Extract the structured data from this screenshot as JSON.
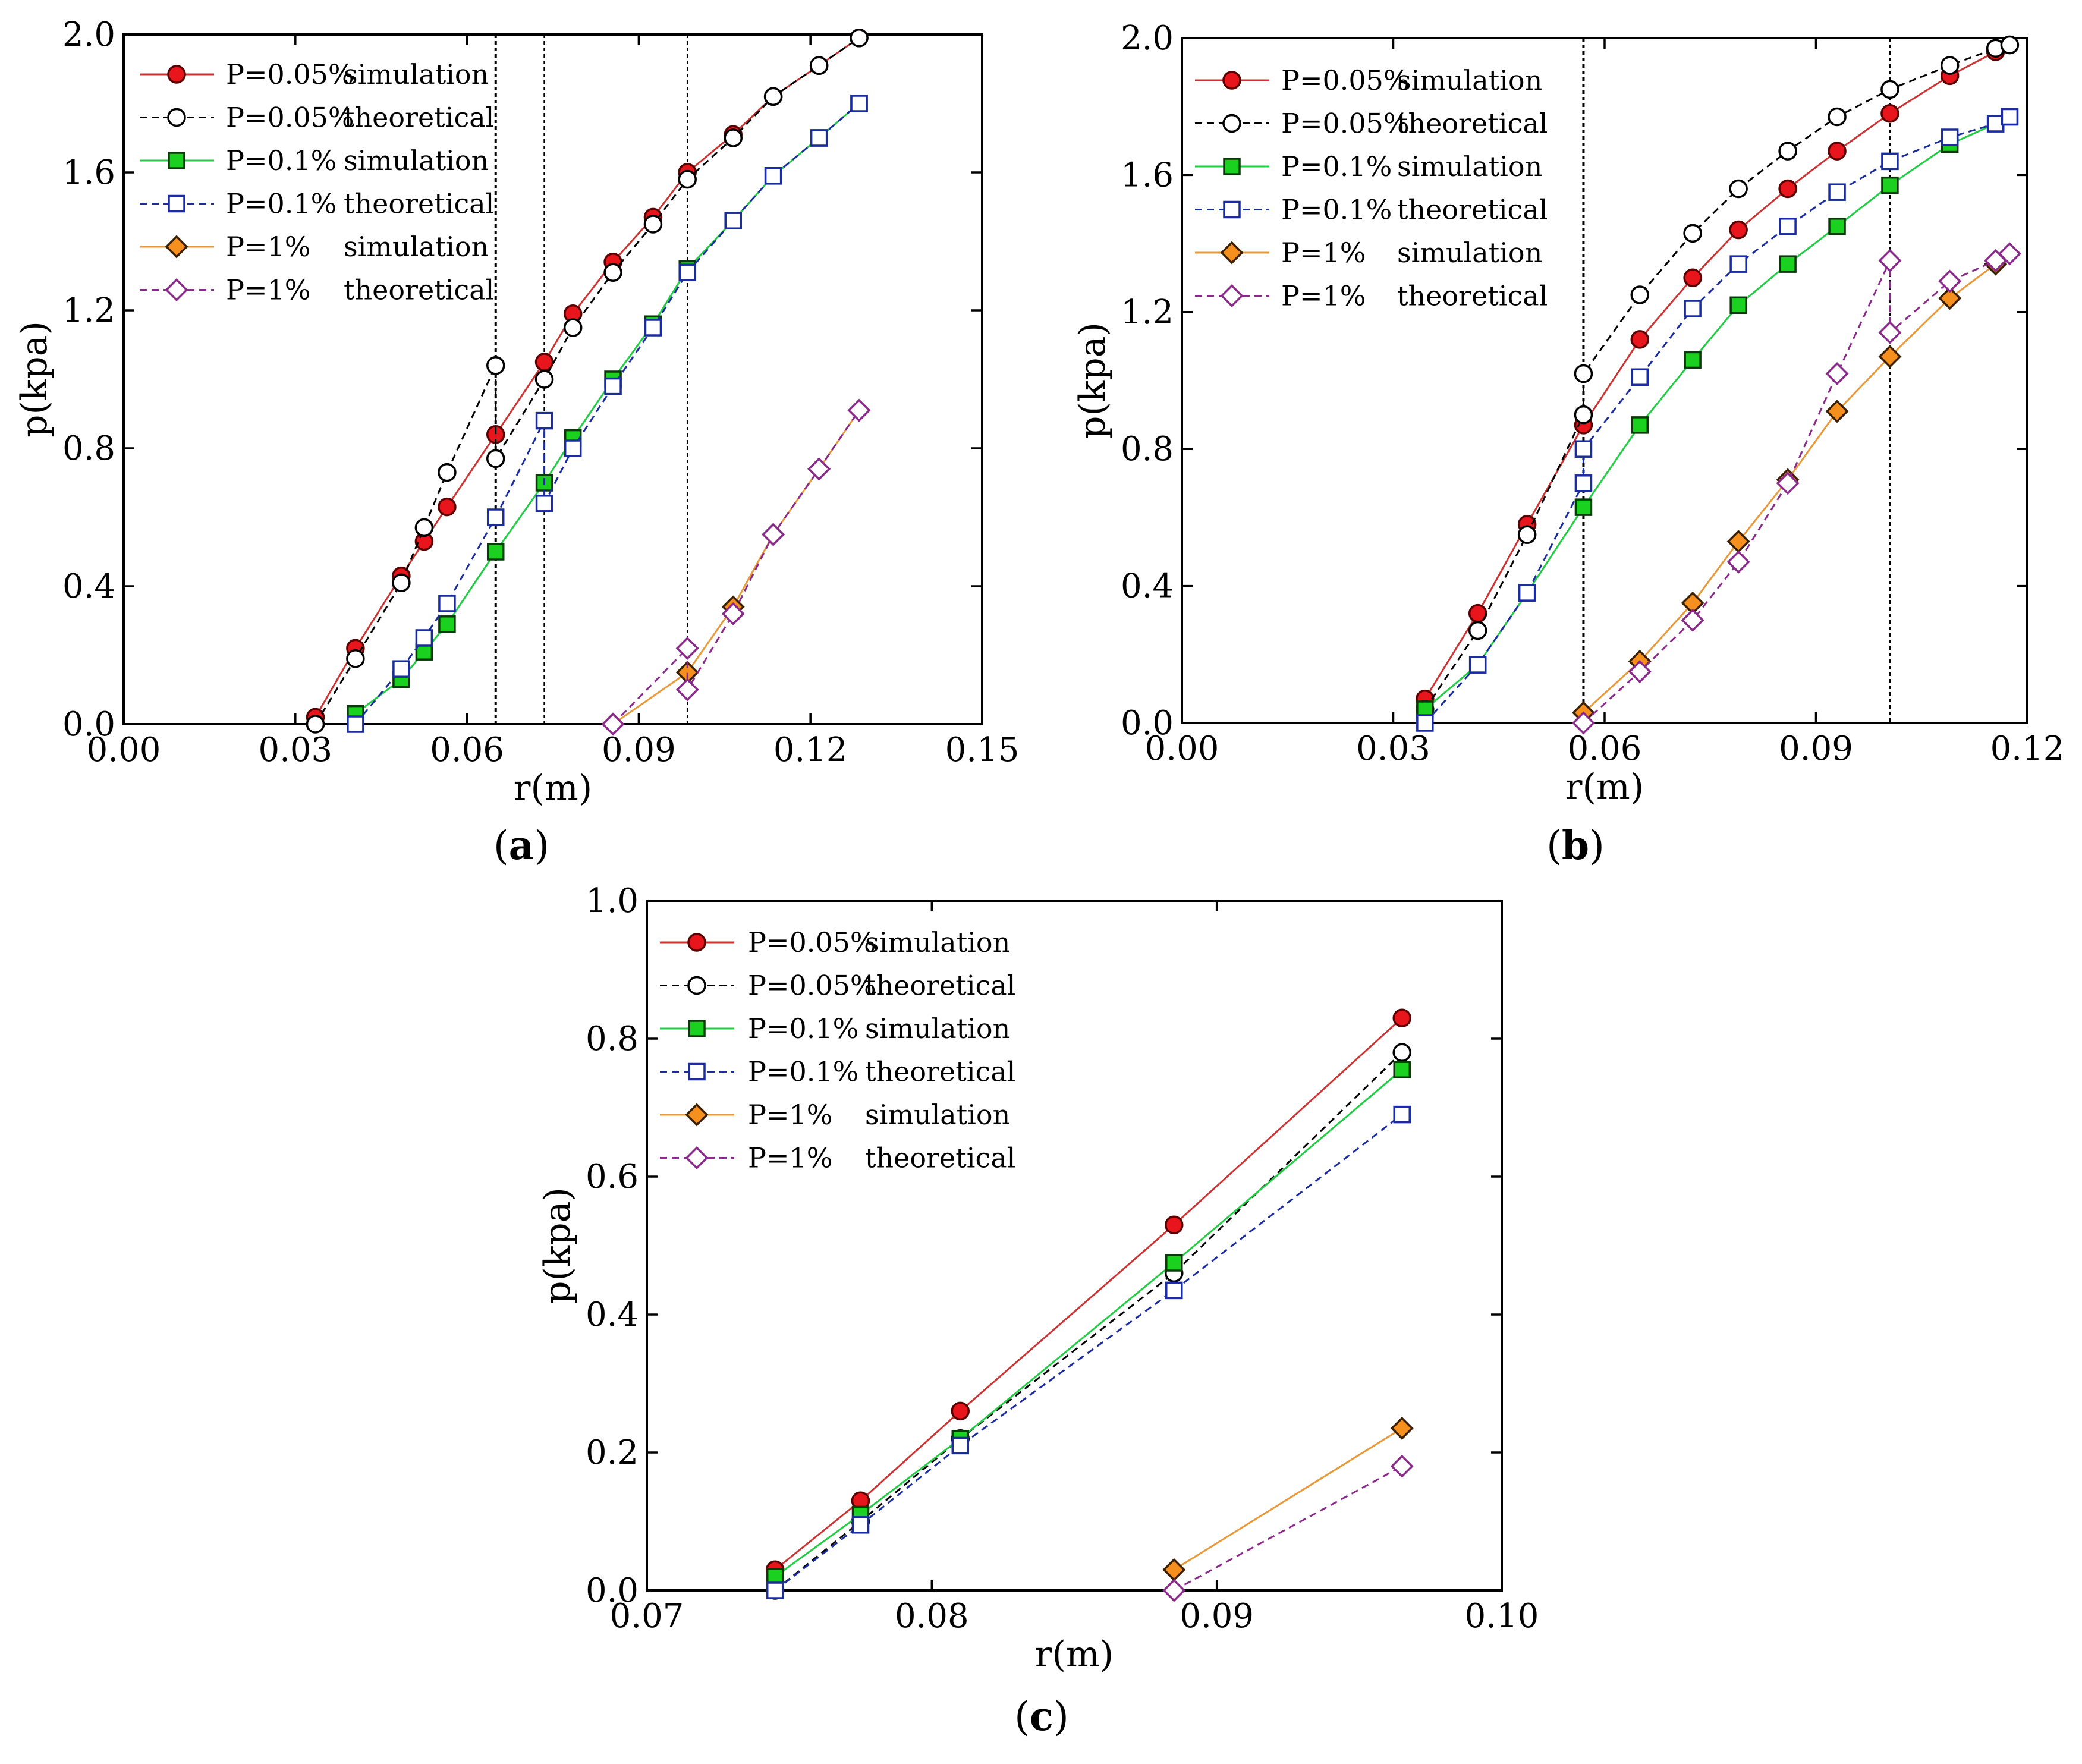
{
  "figure": {
    "panel_labels": [
      "(a)",
      "(b)",
      "(c)"
    ]
  },
  "colors": {
    "sim_005_line": "#cc3333",
    "sim_005_fill": "#e8161c",
    "theo_005": "#000000",
    "sim_01_line": "#22cc44",
    "sim_01_fill": "#19d11e",
    "theo_01": "#1a2c9e",
    "sim_1_line": "#e89a3a",
    "sim_1_fill": "#f5901e",
    "theo_1": "#8a2a8a"
  },
  "chart_data": [
    {
      "type": "line",
      "panel": "(a)",
      "panel_letter": "a",
      "xlabel": "r(m)",
      "ylabel": "p(kpa)",
      "xlim": [
        0,
        0.15
      ],
      "ylim": [
        0,
        2.0
      ],
      "xticks": [
        "0.00",
        "0.03",
        "0.06",
        "0.09",
        "0.12",
        "0.15"
      ],
      "xtick_values": [
        0,
        0.03,
        0.06,
        0.09,
        0.12,
        0.15
      ],
      "yticks": [
        "0.0",
        "0.4",
        "0.8",
        "1.2",
        "1.6",
        "2.0"
      ],
      "ytick_values": [
        0,
        0.4,
        0.8,
        1.2,
        1.6,
        2.0
      ],
      "vlines": [
        0.065,
        0.0735,
        0.0985
      ],
      "legend_position": "top-left",
      "series": [
        {
          "name": "P=0.05% simulation",
          "legend_a": "P=0.05%",
          "legend_b": "simulation",
          "style": "sim",
          "marker": "circle",
          "line_color": "#cc3333",
          "fill": "#e8161c",
          "x": [
            0.0335,
            0.0405,
            0.0485,
            0.0525,
            0.0565,
            0.065,
            0.0735,
            0.0785,
            0.0855,
            0.0925,
            0.0985,
            0.1065,
            0.1135,
            0.1215,
            0.1285
          ],
          "y": [
            0.02,
            0.22,
            0.43,
            0.53,
            0.63,
            0.84,
            1.05,
            1.19,
            1.34,
            1.47,
            1.6,
            1.71,
            1.82,
            1.91,
            1.99
          ]
        },
        {
          "name": "P=0.05% theoretical",
          "legend_a": "P=0.05%",
          "legend_b": "theoretical",
          "style": "theo",
          "marker": "circle",
          "line_color": "#000000",
          "fill": "#ffffff",
          "x": [
            0.0335,
            0.0405,
            0.0485,
            0.0525,
            0.0565,
            0.065,
            0.065,
            0.0735,
            0.0785,
            0.0855,
            0.0925,
            0.0985,
            0.1065,
            0.1135,
            0.1215,
            0.1285
          ],
          "y": [
            0.0,
            0.19,
            0.41,
            0.57,
            0.73,
            1.04,
            0.77,
            1.0,
            1.15,
            1.31,
            1.45,
            1.58,
            1.7,
            1.82,
            1.91,
            1.99
          ]
        },
        {
          "name": "P=0.1% simulation",
          "legend_a": "P=0.1%",
          "legend_b": "simulation",
          "style": "sim",
          "marker": "square",
          "line_color": "#22cc44",
          "fill": "#19d11e",
          "x": [
            0.0405,
            0.0485,
            0.0525,
            0.0565,
            0.065,
            0.0735,
            0.0785,
            0.0855,
            0.0925,
            0.0985,
            0.1065,
            0.1135,
            0.1215,
            0.1285
          ],
          "y": [
            0.03,
            0.13,
            0.21,
            0.29,
            0.5,
            0.7,
            0.83,
            1.0,
            1.16,
            1.32,
            1.46,
            1.59,
            1.7,
            1.8
          ]
        },
        {
          "name": "P=0.1% theoretical",
          "legend_a": "P=0.1%",
          "legend_b": "theoretical",
          "style": "theo",
          "marker": "square",
          "line_color": "#1a2c9e",
          "fill": "#ffffff",
          "x": [
            0.0405,
            0.0485,
            0.0525,
            0.0565,
            0.065,
            0.0735,
            0.0735,
            0.0785,
            0.0855,
            0.0925,
            0.0985,
            0.1065,
            0.1135,
            0.1215,
            0.1285
          ],
          "y": [
            0.0,
            0.16,
            0.25,
            0.35,
            0.6,
            0.88,
            0.64,
            0.8,
            0.98,
            1.15,
            1.31,
            1.46,
            1.59,
            1.7,
            1.8
          ]
        },
        {
          "name": "P=1% simulation",
          "legend_a": "P=1%",
          "legend_b": "simulation",
          "style": "sim",
          "marker": "diamond",
          "line_color": "#e89a3a",
          "fill": "#f5901e",
          "x": [
            0.0855,
            0.0985,
            0.1065,
            0.1135,
            0.1215,
            0.1285
          ],
          "y": [
            0.0,
            0.15,
            0.34,
            0.55,
            0.74,
            0.91
          ]
        },
        {
          "name": "P=1% theoretical",
          "legend_a": "P=1%",
          "legend_b": "theoretical",
          "style": "theo",
          "marker": "diamond",
          "line_color": "#8a2a8a",
          "fill": "#ffffff",
          "x": [
            0.0855,
            0.0985,
            0.0985,
            0.1065,
            0.1135,
            0.1215,
            0.1285
          ],
          "y": [
            0.0,
            0.22,
            0.1,
            0.32,
            0.55,
            0.74,
            0.91
          ]
        }
      ]
    },
    {
      "type": "line",
      "panel": "(b)",
      "panel_letter": "b",
      "xlabel": "r(m)",
      "ylabel": "p(kpa)",
      "xlim": [
        0,
        0.12
      ],
      "ylim": [
        0,
        2.0
      ],
      "xticks": [
        "0.00",
        "0.03",
        "0.06",
        "0.09",
        "0.12"
      ],
      "xtick_values": [
        0,
        0.03,
        0.06,
        0.09,
        0.12
      ],
      "yticks": [
        "0.0",
        "0.4",
        "0.8",
        "1.2",
        "1.6",
        "2.0"
      ],
      "ytick_values": [
        0,
        0.4,
        0.8,
        1.2,
        1.6,
        2.0
      ],
      "vlines": [
        0.057,
        0.1005
      ],
      "legend_position": "top-left",
      "series": [
        {
          "name": "P=0.05% simulation",
          "legend_a": "P=0.05%",
          "legend_b": "simulation",
          "style": "sim",
          "marker": "circle",
          "line_color": "#cc3333",
          "fill": "#e8161c",
          "x": [
            0.0345,
            0.042,
            0.049,
            0.057,
            0.065,
            0.0725,
            0.079,
            0.086,
            0.093,
            0.1005,
            0.109,
            0.1155,
            0.1175
          ],
          "y": [
            0.07,
            0.32,
            0.58,
            0.87,
            1.12,
            1.3,
            1.44,
            1.56,
            1.67,
            1.78,
            1.89,
            1.96,
            1.98
          ]
        },
        {
          "name": "P=0.05% theoretical",
          "legend_a": "P=0.05%",
          "legend_b": "theoretical",
          "style": "theo",
          "marker": "circle",
          "line_color": "#000000",
          "fill": "#ffffff",
          "x": [
            0.0345,
            0.042,
            0.049,
            0.057,
            0.057,
            0.065,
            0.0725,
            0.079,
            0.086,
            0.093,
            0.1005,
            0.109,
            0.1155,
            0.1175
          ],
          "y": [
            0.04,
            0.27,
            0.55,
            0.9,
            1.02,
            1.25,
            1.43,
            1.56,
            1.67,
            1.77,
            1.85,
            1.92,
            1.97,
            1.98
          ]
        },
        {
          "name": "P=0.1% simulation",
          "legend_a": "P=0.1%",
          "legend_b": "simulation",
          "style": "sim",
          "marker": "square",
          "line_color": "#22cc44",
          "fill": "#19d11e",
          "x": [
            0.0345,
            0.042,
            0.049,
            0.057,
            0.065,
            0.0725,
            0.079,
            0.086,
            0.093,
            0.1005,
            0.109,
            0.1155,
            0.1175
          ],
          "y": [
            0.04,
            0.17,
            0.38,
            0.63,
            0.87,
            1.06,
            1.22,
            1.34,
            1.45,
            1.57,
            1.69,
            1.75,
            1.77
          ]
        },
        {
          "name": "P=0.1% theoretical",
          "legend_a": "P=0.1%",
          "legend_b": "theoretical",
          "style": "theo",
          "marker": "square",
          "line_color": "#1a2c9e",
          "fill": "#ffffff",
          "x": [
            0.0345,
            0.042,
            0.049,
            0.057,
            0.057,
            0.065,
            0.0725,
            0.079,
            0.086,
            0.093,
            0.1005,
            0.109,
            0.1155,
            0.1175
          ],
          "y": [
            0.0,
            0.17,
            0.38,
            0.7,
            0.8,
            1.01,
            1.21,
            1.34,
            1.45,
            1.55,
            1.64,
            1.71,
            1.75,
            1.77
          ]
        },
        {
          "name": "P=1% simulation",
          "legend_a": "P=1%",
          "legend_b": "simulation",
          "style": "sim",
          "marker": "diamond",
          "line_color": "#e89a3a",
          "fill": "#f5901e",
          "x": [
            0.057,
            0.065,
            0.0725,
            0.079,
            0.086,
            0.093,
            0.1005,
            0.109,
            0.1155
          ],
          "y": [
            0.03,
            0.18,
            0.35,
            0.53,
            0.71,
            0.91,
            1.07,
            1.24,
            1.34
          ]
        },
        {
          "name": "P=1% theoretical",
          "legend_a": "P=1%",
          "legend_b": "theoretical",
          "style": "theo",
          "marker": "diamond",
          "line_color": "#8a2a8a",
          "fill": "#ffffff",
          "x": [
            0.057,
            0.065,
            0.0725,
            0.079,
            0.086,
            0.093,
            0.1005,
            0.1005,
            0.109,
            0.1155,
            0.1175
          ],
          "y": [
            0.0,
            0.15,
            0.3,
            0.47,
            0.7,
            1.02,
            1.35,
            1.14,
            1.29,
            1.35,
            1.37
          ]
        }
      ]
    },
    {
      "type": "line",
      "panel": "(c)",
      "panel_letter": "c",
      "xlabel": "r(m)",
      "ylabel": "p(kpa)",
      "xlim": [
        0.07,
        0.1
      ],
      "ylim": [
        0,
        1.0
      ],
      "xticks": [
        "0.07",
        "0.08",
        "0.09",
        "0.10"
      ],
      "xtick_values": [
        0.07,
        0.08,
        0.09,
        0.1
      ],
      "yticks": [
        "0.0",
        "0.2",
        "0.4",
        "0.6",
        "0.8",
        "1.0"
      ],
      "ytick_values": [
        0,
        0.2,
        0.4,
        0.6,
        0.8,
        1.0
      ],
      "vlines": [],
      "legend_position": "top-left",
      "series": [
        {
          "name": "P=0.05% simulation",
          "legend_a": "P=0.05%",
          "legend_b": "simulation",
          "style": "sim",
          "marker": "circle",
          "line_color": "#cc3333",
          "fill": "#e8161c",
          "x": [
            0.0745,
            0.0775,
            0.081,
            0.0885,
            0.0965
          ],
          "y": [
            0.03,
            0.13,
            0.26,
            0.53,
            0.83
          ]
        },
        {
          "name": "P=0.05% theoretical",
          "legend_a": "P=0.05%",
          "legend_b": "theoretical",
          "style": "theo",
          "marker": "circle",
          "line_color": "#000000",
          "fill": "#ffffff",
          "x": [
            0.0745,
            0.0775,
            0.081,
            0.0885,
            0.0965
          ],
          "y": [
            0.0,
            0.1,
            0.22,
            0.46,
            0.78
          ]
        },
        {
          "name": "P=0.1% simulation",
          "legend_a": "P=0.1%",
          "legend_b": "simulation",
          "style": "sim",
          "marker": "square",
          "line_color": "#22cc44",
          "fill": "#19d11e",
          "x": [
            0.0745,
            0.0775,
            0.081,
            0.0885,
            0.0965
          ],
          "y": [
            0.02,
            0.11,
            0.22,
            0.475,
            0.755
          ]
        },
        {
          "name": "P=0.1% theoretical",
          "legend_a": "P=0.1%",
          "legend_b": "theoretical",
          "style": "theo",
          "marker": "square",
          "line_color": "#1a2c9e",
          "fill": "#ffffff",
          "x": [
            0.0745,
            0.0775,
            0.081,
            0.0885,
            0.0965
          ],
          "y": [
            0.0,
            0.095,
            0.21,
            0.435,
            0.69
          ]
        },
        {
          "name": "P=1% simulation",
          "legend_a": "P=1%",
          "legend_b": "simulation",
          "style": "sim",
          "marker": "diamond",
          "line_color": "#e89a3a",
          "fill": "#f5901e",
          "x": [
            0.0885,
            0.0965
          ],
          "y": [
            0.03,
            0.235
          ]
        },
        {
          "name": "P=1% theoretical",
          "legend_a": "P=1%",
          "legend_b": "theoretical",
          "style": "theo",
          "marker": "diamond",
          "line_color": "#8a2a8a",
          "fill": "#ffffff",
          "x": [
            0.0885,
            0.0965
          ],
          "y": [
            0.0,
            0.18
          ]
        }
      ]
    }
  ]
}
